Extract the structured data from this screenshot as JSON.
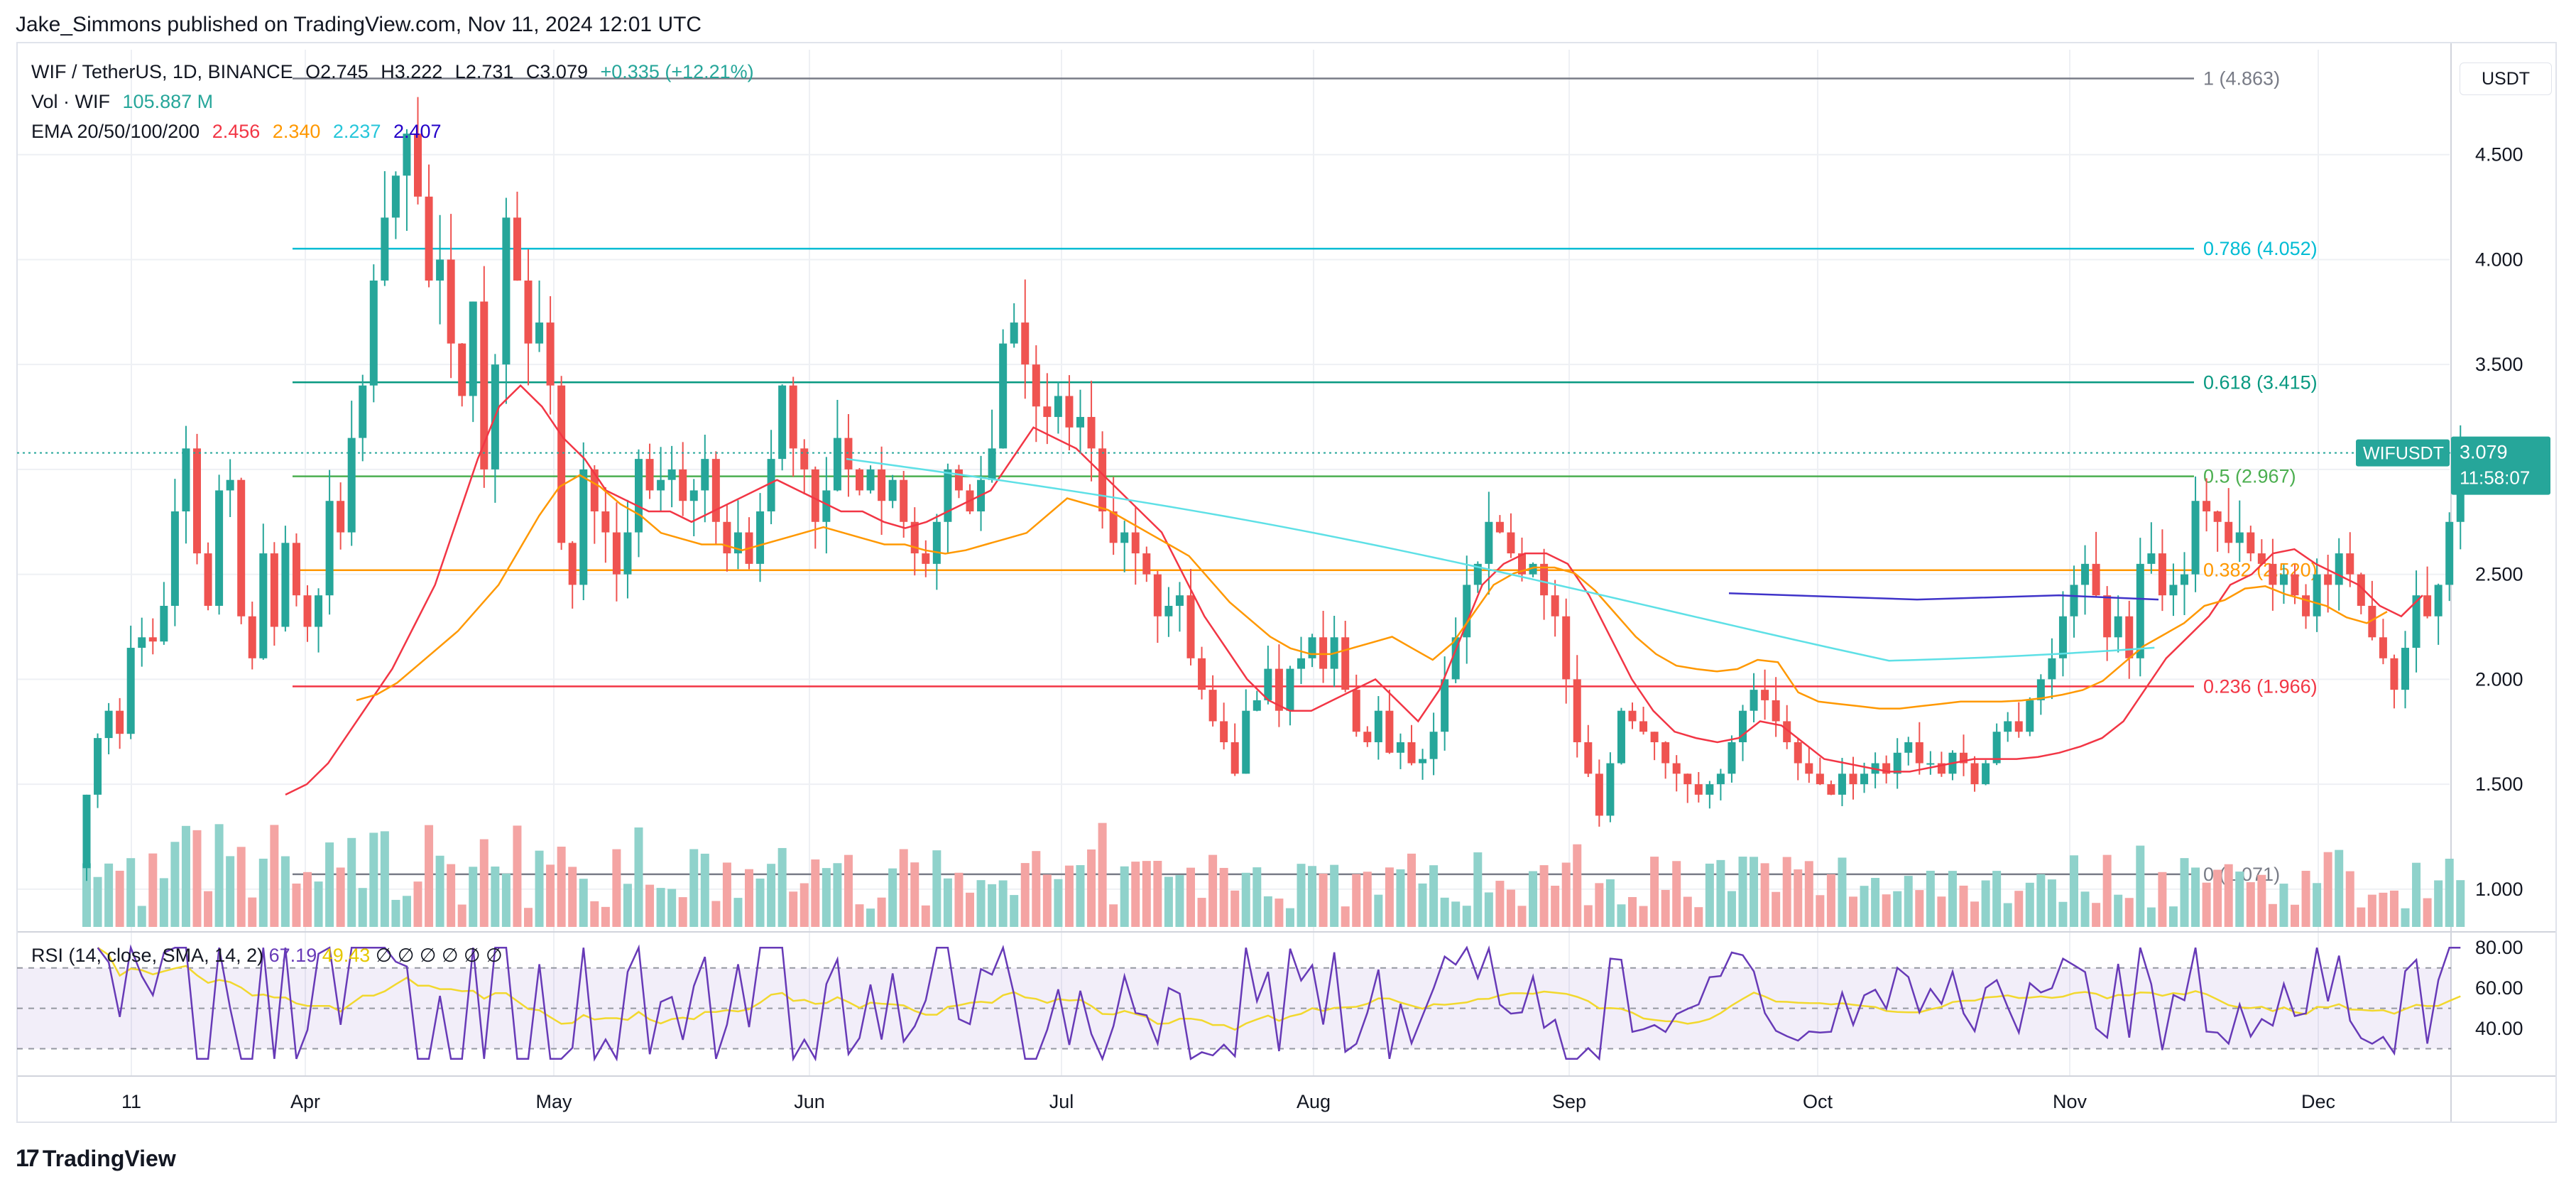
{
  "header": {
    "published": "Jake_Simmons published on TradingView.com, Nov 11, 2024 12:01 UTC",
    "symbol_line": "WIF / TetherUS, 1D, BINANCE",
    "ohlc": {
      "o": "O2.745",
      "h": "H3.222",
      "l": "L2.731",
      "c": "C3.079",
      "chg": "+0.335 (+12.21%)"
    },
    "vol_label": "Vol · WIF",
    "vol_value": "105.887 M",
    "ema_label": "EMA 20/50/100/200",
    "ema_values": [
      "2.456",
      "2.340",
      "2.237",
      "2.407"
    ]
  },
  "currency_button": "USDT",
  "rsi_legend": {
    "label": "RSI (14, close, SMA, 14, 2)",
    "rsi": "67.19",
    "sma": "49.43",
    "na": [
      "∅",
      "∅",
      "∅",
      "∅",
      "∅",
      "∅"
    ]
  },
  "brand": {
    "logo": "17",
    "name": "TradingView"
  },
  "colors": {
    "up": "#26a69a",
    "down": "#ef5350",
    "vol_up": "#8fd2cb",
    "vol_down": "#f4a4a3",
    "ema20": "#f23645",
    "ema50": "#ff9800",
    "ema100": "#5ee0e6",
    "ema200": "#3f33c9",
    "rsi": "#673ab7",
    "rsi_sma": "#f2d82e"
  },
  "chart_data": {
    "type": "candlestick",
    "title": "WIF / TetherUS, 1D, BINANCE",
    "x_ticks": [
      "11",
      "Apr",
      "May",
      "Jun",
      "Jul",
      "Aug",
      "Sep",
      "Oct",
      "Nov",
      "Dec"
    ],
    "y_ticks": [
      "1.000",
      "1.500",
      "2.000",
      "2.500",
      "3.000",
      "3.500",
      "4.000",
      "4.500"
    ],
    "ylim": [
      0.82,
      5.0
    ],
    "last_price_label": {
      "symbol": "WIFUSDT",
      "price": "3.079",
      "countdown": "11:58:07"
    },
    "fib_levels": [
      {
        "label": "1 (4.863)",
        "value": 4.863,
        "color": "#787b86"
      },
      {
        "label": "0.786 (4.052)",
        "value": 4.052,
        "color": "#00bcd4"
      },
      {
        "label": "0.618 (3.415)",
        "value": 3.415,
        "color": "#089981"
      },
      {
        "label": "0.5 (2.967)",
        "value": 2.967,
        "color": "#4caf50"
      },
      {
        "label": "0.382 (2.520)",
        "value": 2.52,
        "color": "#ff9800"
      },
      {
        "label": "0.236 (1.966)",
        "value": 1.966,
        "color": "#f23645"
      },
      {
        "label": "0 (1.071)",
        "value": 1.071,
        "color": "#787b86"
      }
    ],
    "closes": [
      1.45,
      1.72,
      1.85,
      1.74,
      2.15,
      2.2,
      2.18,
      2.35,
      2.8,
      3.1,
      2.6,
      2.35,
      2.9,
      2.95,
      2.3,
      2.1,
      2.6,
      2.25,
      2.65,
      2.4,
      2.25,
      2.4,
      2.85,
      2.7,
      3.15,
      3.4,
      3.9,
      4.2,
      4.4,
      4.6,
      4.3,
      3.9,
      4.0,
      3.6,
      3.35,
      3.8,
      3.0,
      3.5,
      4.2,
      3.9,
      3.6,
      3.7,
      3.4,
      2.65,
      2.45,
      3.0,
      2.8,
      2.7,
      2.5,
      2.7,
      3.05,
      2.9,
      2.95,
      3.0,
      2.85,
      2.9,
      3.05,
      2.75,
      2.6,
      2.7,
      2.55,
      2.8,
      3.05,
      3.4,
      3.1,
      3.0,
      2.75,
      2.9,
      3.15,
      3.0,
      2.9,
      3.0,
      2.85,
      2.95,
      2.75,
      2.6,
      2.55,
      2.75,
      3.0,
      2.9,
      2.8,
      2.95,
      3.1,
      3.6,
      3.7,
      3.5,
      3.3,
      3.25,
      3.35,
      3.2,
      3.25,
      3.1,
      2.8,
      2.65,
      2.7,
      2.6,
      2.5,
      2.3,
      2.35,
      2.4,
      2.1,
      1.95,
      1.8,
      1.7,
      1.55,
      1.85,
      1.9,
      2.05,
      1.85,
      2.05,
      2.1,
      2.2,
      2.05,
      2.2,
      1.95,
      1.75,
      1.7,
      1.85,
      1.65,
      1.7,
      1.6,
      1.62,
      1.75,
      2.0,
      2.2,
      2.45,
      2.55,
      2.75,
      2.7,
      2.6,
      2.5,
      2.55,
      2.4,
      2.3,
      2.0,
      1.7,
      1.55,
      1.35,
      1.6,
      1.85,
      1.8,
      1.75,
      1.7,
      1.6,
      1.55,
      1.5,
      1.45,
      1.5,
      1.55,
      1.7,
      1.85,
      1.95,
      1.9,
      1.8,
      1.7,
      1.6,
      1.55,
      1.5,
      1.45,
      1.55,
      1.5,
      1.55,
      1.6,
      1.55,
      1.65,
      1.7,
      1.6,
      1.6,
      1.55,
      1.65,
      1.6,
      1.5,
      1.6,
      1.75,
      1.8,
      1.75,
      1.9,
      2.0,
      2.1,
      2.3,
      2.45,
      2.55,
      2.4,
      2.2,
      2.3,
      2.1,
      2.55,
      2.6,
      2.4,
      2.45,
      2.5,
      2.85,
      2.8,
      2.75,
      2.65,
      2.7,
      2.6,
      2.55,
      2.45,
      2.5,
      2.4,
      2.3,
      2.5,
      2.45,
      2.6,
      2.5,
      2.35,
      2.2,
      2.1,
      1.95,
      2.15,
      2.4,
      2.3,
      2.45,
      2.75,
      3.079
    ],
    "ema20": [
      1.45,
      1.5,
      1.6,
      1.75,
      1.9,
      2.05,
      2.25,
      2.45,
      2.75,
      3.05,
      3.3,
      3.4,
      3.3,
      3.15,
      3.05,
      2.9,
      2.85,
      2.8,
      2.8,
      2.75,
      2.8,
      2.85,
      2.9,
      2.95,
      2.9,
      2.85,
      2.8,
      2.8,
      2.75,
      2.72,
      2.75,
      2.8,
      2.85,
      2.9,
      3.05,
      3.2,
      3.15,
      3.1,
      3.0,
      2.9,
      2.8,
      2.7,
      2.5,
      2.3,
      2.15,
      2.0,
      1.9,
      1.85,
      1.85,
      1.9,
      1.95,
      2.0,
      1.9,
      1.8,
      1.95,
      2.2,
      2.45,
      2.55,
      2.6,
      2.6,
      2.55,
      2.4,
      2.2,
      2.0,
      1.85,
      1.75,
      1.72,
      1.7,
      1.72,
      1.8,
      1.78,
      1.7,
      1.62,
      1.6,
      1.58,
      1.56,
      1.56,
      1.58,
      1.6,
      1.62,
      1.62,
      1.62,
      1.63,
      1.65,
      1.68,
      1.72,
      1.8,
      1.95,
      2.1,
      2.2,
      2.3,
      2.45,
      2.5,
      2.6,
      2.62,
      2.55,
      2.5,
      2.45,
      2.35,
      2.3,
      2.4
    ]
  }
}
